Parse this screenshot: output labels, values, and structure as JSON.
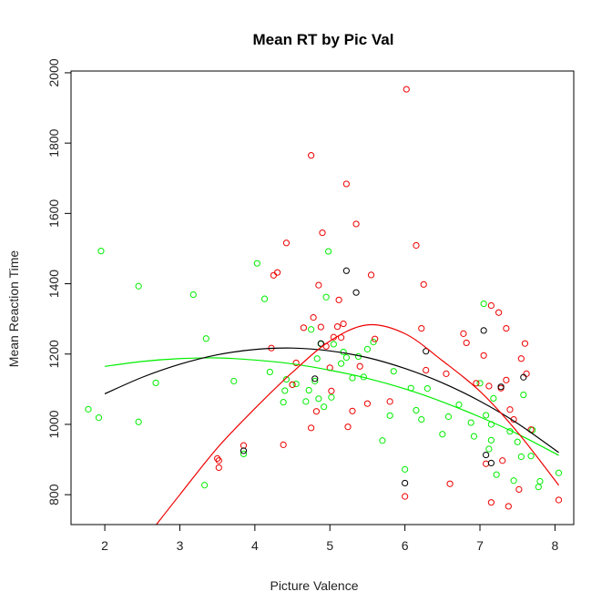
{
  "chart_data": {
    "type": "scatter",
    "title": "Mean RT by Pic Val",
    "xlabel": "Picture Valence",
    "ylabel": "Mean Reaction Time",
    "xlim": [
      1.55,
      8.25
    ],
    "ylim": [
      715,
      2005
    ],
    "xticks": [
      "2",
      "3",
      "4",
      "5",
      "6",
      "7",
      "8"
    ],
    "yticks": [
      "800",
      "1000",
      "1200",
      "1400",
      "1600",
      "1800",
      "2000"
    ],
    "grid": false,
    "colors": {
      "green": "#00ee00",
      "red": "#ee0000",
      "black": "#000000"
    },
    "series": [
      {
        "color": "green",
        "points": [
          [
            1.78,
            1043
          ],
          [
            1.92,
            1019
          ],
          [
            1.95,
            1493
          ],
          [
            2.45,
            1393
          ],
          [
            2.45,
            1007
          ],
          [
            2.68,
            1118
          ],
          [
            3.18,
            1369
          ],
          [
            3.33,
            827
          ],
          [
            3.35,
            1244
          ],
          [
            3.72,
            1123
          ],
          [
            3.85,
            916
          ],
          [
            4.03,
            1458
          ],
          [
            4.13,
            1357
          ],
          [
            4.2,
            1149
          ],
          [
            4.38,
            1063
          ],
          [
            4.4,
            1096
          ],
          [
            4.42,
            1128
          ],
          [
            4.5,
            1113
          ],
          [
            4.55,
            1115
          ],
          [
            4.68,
            1065
          ],
          [
            4.72,
            1097
          ],
          [
            4.75,
            1270
          ],
          [
            4.8,
            1123
          ],
          [
            4.83,
            1187
          ],
          [
            4.85,
            1073
          ],
          [
            4.88,
            1229
          ],
          [
            4.92,
            1050
          ],
          [
            4.95,
            1362
          ],
          [
            4.98,
            1492
          ],
          [
            5.02,
            1077
          ],
          [
            5.05,
            1228
          ],
          [
            5.15,
            1173
          ],
          [
            5.18,
            1206
          ],
          [
            5.22,
            1190
          ],
          [
            5.3,
            1132
          ],
          [
            5.38,
            1193
          ],
          [
            5.45,
            1135
          ],
          [
            5.5,
            1214
          ],
          [
            5.58,
            1234
          ],
          [
            5.7,
            954
          ],
          [
            5.8,
            1025
          ],
          [
            5.85,
            1151
          ],
          [
            6.0,
            872
          ],
          [
            6.08,
            1103
          ],
          [
            6.15,
            1040
          ],
          [
            6.22,
            1014
          ],
          [
            6.3,
            1102
          ],
          [
            6.5,
            972
          ],
          [
            6.58,
            1022
          ],
          [
            6.72,
            1056
          ],
          [
            6.88,
            1005
          ],
          [
            6.92,
            966
          ],
          [
            7.0,
            1117
          ],
          [
            7.05,
            1343
          ],
          [
            7.08,
            1026
          ],
          [
            7.12,
            930
          ],
          [
            7.15,
            955
          ],
          [
            7.18,
            1074
          ],
          [
            7.22,
            857
          ],
          [
            7.4,
            980
          ],
          [
            7.45,
            840
          ],
          [
            7.5,
            950
          ],
          [
            7.55,
            908
          ],
          [
            7.58,
            1084
          ],
          [
            7.68,
            910
          ],
          [
            7.7,
            984
          ],
          [
            7.8,
            838
          ],
          [
            7.78,
            822
          ],
          [
            8.05,
            862
          ],
          [
            7.15,
            1000
          ]
        ]
      },
      {
        "color": "red",
        "points": [
          [
            3.5,
            903
          ],
          [
            3.52,
            877
          ],
          [
            3.52,
            897
          ],
          [
            3.85,
            940
          ],
          [
            4.22,
            1217
          ],
          [
            4.25,
            1424
          ],
          [
            4.3,
            1432
          ],
          [
            4.38,
            942
          ],
          [
            4.42,
            1516
          ],
          [
            4.5,
            1113
          ],
          [
            4.55,
            1175
          ],
          [
            4.65,
            1275
          ],
          [
            4.75,
            1765
          ],
          [
            4.75,
            990
          ],
          [
            4.78,
            1304
          ],
          [
            4.82,
            1037
          ],
          [
            4.85,
            1396
          ],
          [
            4.88,
            1277
          ],
          [
            4.9,
            1545
          ],
          [
            4.95,
            1222
          ],
          [
            5.0,
            1161
          ],
          [
            5.02,
            1095
          ],
          [
            5.05,
            1248
          ],
          [
            5.1,
            1278
          ],
          [
            5.12,
            1354
          ],
          [
            5.15,
            1247
          ],
          [
            5.18,
            1286
          ],
          [
            5.22,
            1684
          ],
          [
            5.24,
            993
          ],
          [
            5.3,
            1038
          ],
          [
            5.35,
            1570
          ],
          [
            5.4,
            1165
          ],
          [
            5.5,
            1059
          ],
          [
            5.55,
            1425
          ],
          [
            5.6,
            1243
          ],
          [
            5.8,
            1065
          ],
          [
            6.0,
            795
          ],
          [
            6.02,
            1953
          ],
          [
            6.15,
            1509
          ],
          [
            6.22,
            1273
          ],
          [
            6.25,
            1398
          ],
          [
            6.28,
            1154
          ],
          [
            6.55,
            1144
          ],
          [
            6.6,
            831
          ],
          [
            6.78,
            1258
          ],
          [
            6.82,
            1232
          ],
          [
            6.95,
            1117
          ],
          [
            7.05,
            1196
          ],
          [
            7.08,
            888
          ],
          [
            7.12,
            1109
          ],
          [
            7.15,
            778
          ],
          [
            7.15,
            1338
          ],
          [
            7.25,
            1318
          ],
          [
            7.28,
            1103
          ],
          [
            7.3,
            897
          ],
          [
            7.35,
            1273
          ],
          [
            7.38,
            767
          ],
          [
            7.4,
            1042
          ],
          [
            7.45,
            1014
          ],
          [
            7.52,
            815
          ],
          [
            7.6,
            1230
          ],
          [
            7.62,
            1144
          ],
          [
            7.68,
            985
          ],
          [
            8.05,
            785
          ],
          [
            7.55,
            1187
          ],
          [
            7.35,
            1126
          ]
        ]
      },
      {
        "color": "black",
        "points": [
          [
            3.85,
            925
          ],
          [
            4.8,
            1130
          ],
          [
            4.88,
            1230
          ],
          [
            5.22,
            1437
          ],
          [
            5.35,
            1375
          ],
          [
            6.0,
            833
          ],
          [
            6.28,
            1208
          ],
          [
            7.05,
            1267
          ],
          [
            7.08,
            913
          ],
          [
            7.15,
            890
          ],
          [
            7.28,
            1107
          ],
          [
            7.58,
            1134
          ]
        ]
      }
    ],
    "fit_lines": [
      {
        "color": "green",
        "x": [
          2.0,
          2.5,
          3.0,
          3.5,
          4.0,
          4.5,
          5.0,
          5.5,
          6.0,
          6.5,
          7.0,
          7.5,
          8.05
        ],
        "y": [
          1165,
          1179,
          1187,
          1189,
          1183,
          1172,
          1154,
          1131,
          1101,
          1064,
          1021,
          973,
          912
        ]
      },
      {
        "color": "black",
        "x": [
          2.0,
          2.5,
          3.0,
          3.5,
          4.0,
          4.5,
          5.0,
          5.5,
          6.0,
          6.5,
          7.0,
          7.5,
          8.05
        ],
        "y": [
          1087,
          1134,
          1171,
          1198,
          1213,
          1217,
          1209,
          1190,
          1159,
          1118,
          1066,
          1003,
          920
        ]
      },
      {
        "color": "red",
        "x": [
          2.68,
          3.0,
          3.5,
          4.0,
          4.5,
          5.0,
          5.5,
          6.0,
          6.5,
          7.0,
          7.5,
          8.05
        ],
        "y": [
          713,
          800,
          933,
          1045,
          1148,
          1237,
          1283,
          1258,
          1181,
          1094,
          978,
          827
        ]
      }
    ]
  }
}
